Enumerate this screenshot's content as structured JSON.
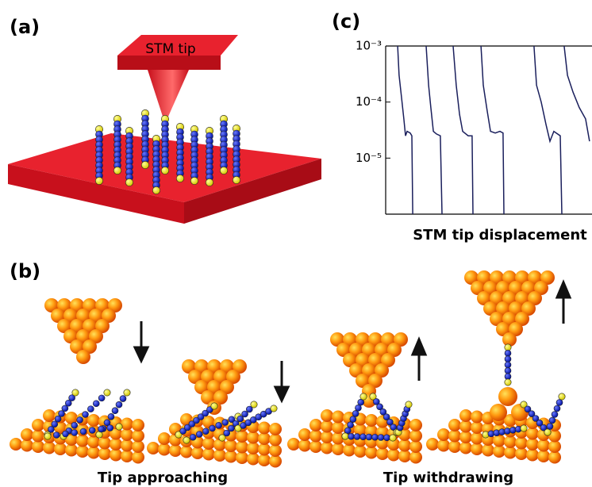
{
  "panel_labels": [
    "(a)",
    "(b)",
    "(c)"
  ],
  "tip_label": "STM tip",
  "captions": [
    "Tip approaching",
    "Tip withdrawing"
  ],
  "chart_data": {
    "type": "line",
    "xlabel": "STM tip displacement",
    "xlim": [
      0,
      100
    ],
    "ylim": [
      1e-06,
      0.001
    ],
    "y_scale": "log",
    "yticks": [
      {
        "value": 0.001,
        "label": "10⁻³"
      },
      {
        "value": 0.0001,
        "label": "10⁻⁴"
      },
      {
        "value": 1e-05,
        "label": "10⁻⁵"
      }
    ],
    "series": [
      {
        "color": "#1a1f5c",
        "x": [
          5.8,
          6.5,
          7.7,
          8.8,
          9.6,
          10.4,
          11.9,
          12.7,
          13.1,
          null,
          19.6,
          20.8,
          21.9,
          23.1,
          24.6,
          26.5,
          27.3,
          null,
          32.7,
          34.2,
          35.8,
          37.3,
          40,
          41.9,
          42.3,
          null,
          46.2,
          47.3,
          49.2,
          50.8,
          53.1,
          55.4,
          56.9,
          57.3,
          null,
          71.9,
          73.1,
          75.4,
          77.7,
          79.6,
          81.5,
          84.6,
          85.4,
          null,
          86.5,
          88.1,
          90.8,
          93.8,
          96.9,
          98.8
        ],
        "values": [
          0.001,
          0.0003,
          0.00012,
          5e-05,
          2.5e-05,
          3e-05,
          2.8e-05,
          2.5e-05,
          1e-06,
          null,
          0.001,
          0.0002,
          8e-05,
          3e-05,
          2.7e-05,
          2.5e-05,
          1e-06,
          null,
          0.001,
          0.0002,
          6e-05,
          3e-05,
          2.5e-05,
          2.5e-05,
          1e-06,
          null,
          0.001,
          0.0002,
          7e-05,
          3e-05,
          2.8e-05,
          3e-05,
          2.8e-05,
          1e-06,
          null,
          0.001,
          0.0002,
          0.0001,
          4e-05,
          2e-05,
          3e-05,
          2.5e-05,
          1e-06,
          null,
          0.001,
          0.0003,
          0.00015,
          8e-05,
          5e-05,
          2e-05
        ]
      }
    ]
  }
}
